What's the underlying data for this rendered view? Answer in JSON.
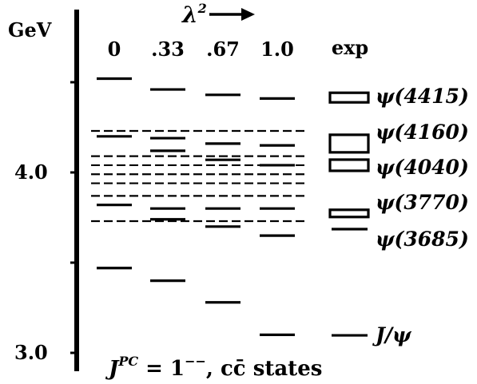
{
  "chart_data": {
    "type": "level-diagram",
    "y_unit_label": "GeV",
    "y_range": [
      2.95,
      4.65
    ],
    "y_ticks": [
      {
        "value": 3.0,
        "label": "3.0"
      },
      {
        "value": 3.5,
        "label": ""
      },
      {
        "value": 4.0,
        "label": "4.0"
      },
      {
        "value": 4.5,
        "label": ""
      }
    ],
    "parameter_label": "λ",
    "parameter_superscript": "2",
    "columns": [
      {
        "label": "0",
        "levels": [
          3.47,
          3.82,
          4.2,
          4.52
        ]
      },
      {
        "label": ".33",
        "levels": [
          3.4,
          3.74,
          3.8,
          4.12,
          4.19,
          4.46
        ]
      },
      {
        "label": ".67",
        "levels": [
          3.28,
          3.7,
          3.8,
          4.07,
          4.16,
          4.43
        ]
      },
      {
        "label": "1.0",
        "levels": [
          3.1,
          3.65,
          3.8,
          4.04,
          4.15,
          4.41
        ]
      }
    ],
    "dashed_thresholds": [
      3.73,
      3.87,
      3.94,
      3.99,
      4.04,
      4.09,
      4.23
    ],
    "experiment": {
      "label": "exp",
      "states": [
        {
          "name": "J/ψ",
          "mass": 3.097,
          "shape": "line"
        },
        {
          "name": "ψ(3685)",
          "mass": 3.686,
          "shape": "line"
        },
        {
          "name": "ψ(3770)",
          "mass": 3.773,
          "shape": "box"
        },
        {
          "name": "ψ(4040)",
          "mass": 4.04,
          "shape": "box"
        },
        {
          "name": "ψ(4160)",
          "mass": 4.16,
          "shape": "box"
        },
        {
          "name": "ψ(4415)",
          "mass": 4.415,
          "shape": "box"
        }
      ]
    },
    "footer_jpc": "1",
    "footer_jpc_sup": "−−",
    "footer_rest": ", cc̄ states"
  }
}
